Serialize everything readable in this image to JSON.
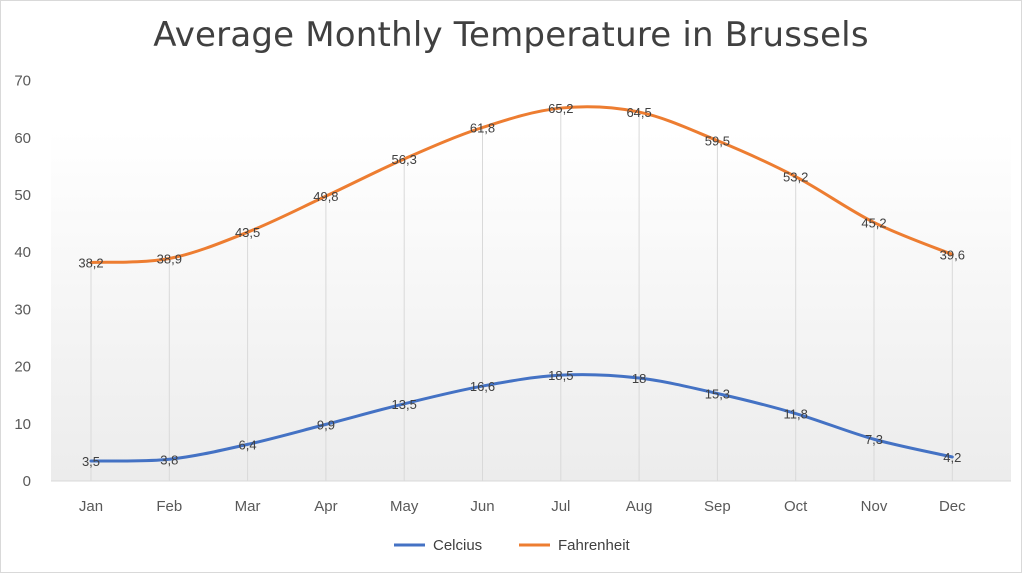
{
  "chart_data": {
    "type": "line",
    "title": "Average Monthly Temperature in Brussels",
    "categories": [
      "Jan",
      "Feb",
      "Mar",
      "Apr",
      "May",
      "Jun",
      "Jul",
      "Aug",
      "Sep",
      "Oct",
      "Nov",
      "Dec"
    ],
    "series": [
      {
        "name": "Celcius",
        "color": "#4472C4",
        "values": [
          3.5,
          3.8,
          6.4,
          9.9,
          13.5,
          16.6,
          18.5,
          18,
          15.3,
          11.8,
          7.3,
          4.2
        ],
        "labels": [
          "3,5",
          "3,8",
          "6,4",
          "9,9",
          "13,5",
          "16,6",
          "18,5",
          "18",
          "15,3",
          "11,8",
          "7,3",
          "4,2"
        ]
      },
      {
        "name": "Fahrenheit",
        "color": "#ED7D31",
        "values": [
          38.2,
          38.9,
          43.5,
          49.8,
          56.3,
          61.8,
          65.2,
          64.5,
          59.5,
          53.2,
          45.2,
          39.6
        ],
        "labels": [
          "38,2",
          "38,9",
          "43,5",
          "49,8",
          "56,3",
          "61,8",
          "65,2",
          "64,5",
          "59,5",
          "53,2",
          "45,2",
          "39,6"
        ]
      }
    ],
    "yticks": [
      0,
      10,
      20,
      30,
      40,
      50,
      60,
      70
    ],
    "ylim": [
      0,
      70
    ],
    "xlabel": "",
    "ylabel": "",
    "legend": "bottom-center",
    "grid": "vertical drop lines"
  }
}
